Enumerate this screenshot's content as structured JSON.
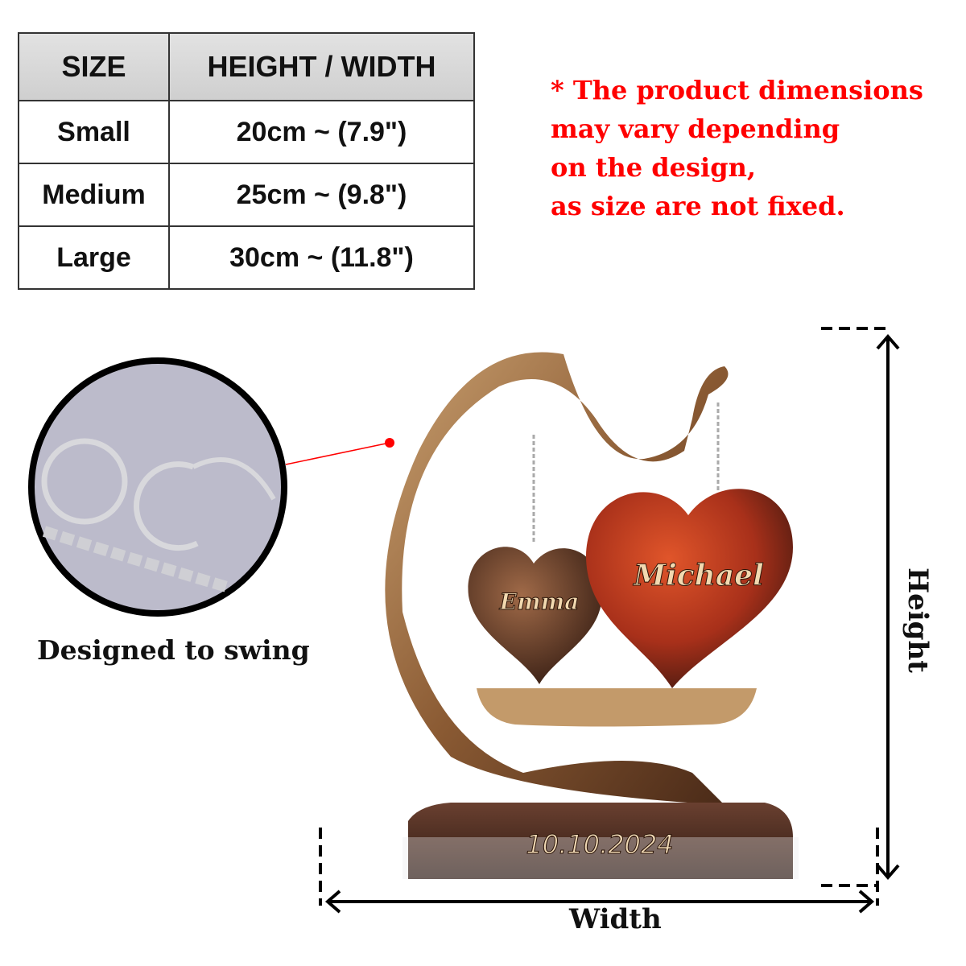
{
  "size_table": {
    "headers": [
      "SIZE",
      "HEIGHT / WIDTH"
    ],
    "rows": [
      {
        "size": "Small",
        "dimension": "20cm ~ (7.9\")"
      },
      {
        "size": "Medium",
        "dimension": "25cm ~ (9.8\")"
      },
      {
        "size": "Large",
        "dimension": "30cm ~ (11.8\")"
      }
    ]
  },
  "note": {
    "lines": [
      "* The product dimensions",
      "may vary depending",
      "on the design,",
      "as size are not fixed."
    ],
    "color": "#ff0000"
  },
  "detail": {
    "caption": "Designed to swing"
  },
  "product": {
    "names": [
      "Emma",
      "Michael"
    ],
    "date": "10.10.2024"
  },
  "dimensions": {
    "height_label": "Height",
    "width_label": "Width"
  }
}
